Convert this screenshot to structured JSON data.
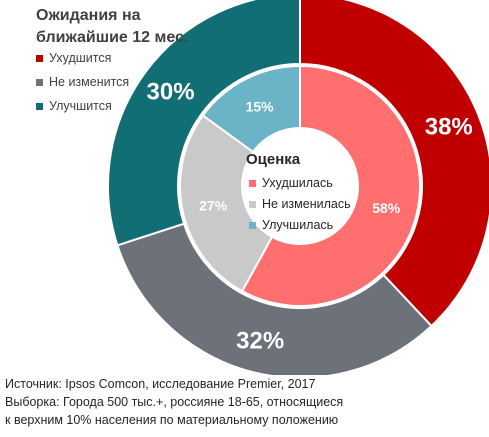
{
  "chart_data": [
    {
      "type": "pie",
      "variant": "donut",
      "ring": "outer",
      "title": [
        "Ожидания на",
        "ближайшие 12 мес."
      ],
      "categories": [
        "Ухудшится",
        "Не изменится",
        "Улучшится"
      ],
      "values": [
        38,
        32,
        30
      ],
      "labels": [
        "38%",
        "32%",
        "30%"
      ],
      "colors": [
        "#C00000",
        "#6D7179",
        "#126E75"
      ],
      "legend_position": "top-left"
    },
    {
      "type": "pie",
      "variant": "donut",
      "ring": "inner",
      "title": "Оценка",
      "categories": [
        "Ухудшилась",
        "Не изменилась",
        "Улучшилась"
      ],
      "values": [
        58,
        27,
        15
      ],
      "labels": [
        "58%",
        "27%",
        "15%"
      ],
      "colors": [
        "#FF6F6F",
        "#C9C9C9",
        "#6BB3C6"
      ],
      "legend_position": "center"
    }
  ],
  "footer": {
    "source": "Источник: Ipsos Comcon, исследование Premier, 2017",
    "sample_line1": "Выборка: Города 500 тыс.+, россияне 18-65, относящиеся",
    "sample_line2": "к верхним 10% населения по материальному положению"
  }
}
